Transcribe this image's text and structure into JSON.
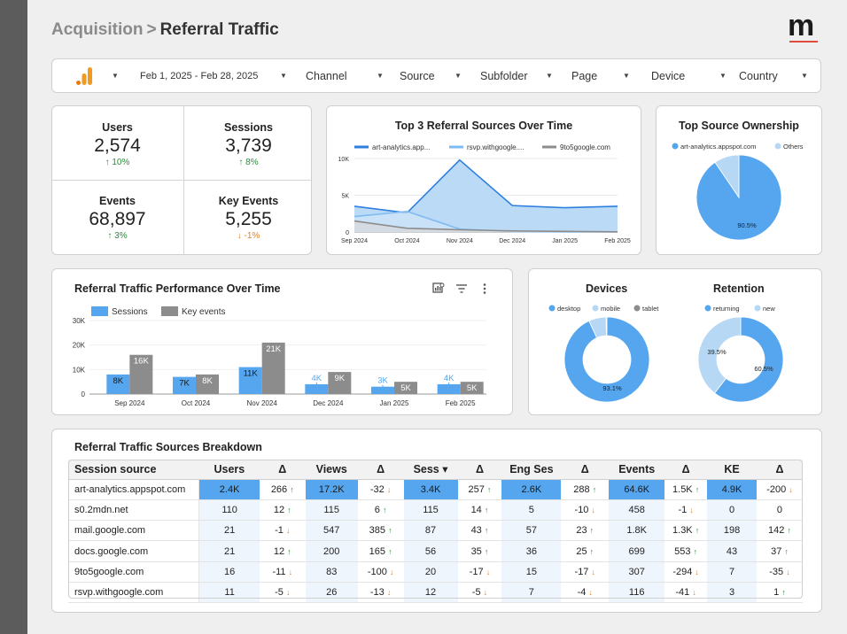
{
  "header": {
    "crumb": "Acquisition",
    "separator": ">",
    "title": "Referral Traffic",
    "logo_letter": "m"
  },
  "filters": {
    "date_range": "Feb 1, 2025 - Feb 28, 2025",
    "items": [
      "Channel",
      "Source",
      "Subfolder",
      "Page",
      "Device",
      "Country"
    ]
  },
  "kpis": [
    {
      "label": "Users",
      "value": "2,574",
      "delta": "10%",
      "dir": "up"
    },
    {
      "label": "Sessions",
      "value": "3,739",
      "delta": "8%",
      "dir": "up"
    },
    {
      "label": "Events",
      "value": "68,897",
      "delta": "3%",
      "dir": "up"
    },
    {
      "label": "Key Events",
      "value": "5,255",
      "delta": "-1%",
      "dir": "down"
    }
  ],
  "top3": {
    "title": "Top 3 Referral Sources Over Time",
    "legend": [
      "art-analytics.app...",
      "rsvp.withgoogle....",
      "9to5google.com"
    ]
  },
  "ownership": {
    "title": "Top Source Ownership",
    "legend": [
      "art-analytics.appspot.com",
      "Others"
    ],
    "label": "90.5%"
  },
  "performance": {
    "title": "Referral Traffic Performance Over Time",
    "legend": [
      "Sessions",
      "Key events"
    ]
  },
  "devices": {
    "title": "Devices",
    "legend": [
      "desktop",
      "mobile",
      "tablet"
    ],
    "label": "93.1%"
  },
  "retention": {
    "title": "Retention",
    "legend": [
      "returning",
      "new"
    ],
    "label_returning": "60.5%",
    "label_new": "39.5%"
  },
  "breakdown": {
    "title": "Referral Traffic Sources Breakdown",
    "columns": [
      "Session source",
      "Users",
      "Δ",
      "Views",
      "Δ",
      "Sess ▾",
      "Δ",
      "Eng Ses",
      "Δ",
      "Events",
      "Δ",
      "KE",
      "Δ"
    ],
    "rows": [
      [
        "art-analytics.appspot.com",
        "2.4K",
        "266 ↑",
        "17.2K",
        "-32 ↓",
        "3.4K",
        "257 ↑",
        "2.6K",
        "288 ↑",
        "64.6K",
        "1.5K ↑",
        "4.9K",
        "-200 ↓"
      ],
      [
        "s0.2mdn.net",
        "110",
        "12 ↑",
        "115",
        "6 ↑",
        "115",
        "14 ↑",
        "5",
        "-10 ↓",
        "458",
        "-1 ↓",
        "0",
        "0"
      ],
      [
        "mail.google.com",
        "21",
        "-1 ↓",
        "547",
        "385 ↑",
        "87",
        "43 ↑",
        "57",
        "23 ↑",
        "1.8K",
        "1.3K ↑",
        "198",
        "142 ↑"
      ],
      [
        "docs.google.com",
        "21",
        "12 ↑",
        "200",
        "165 ↑",
        "56",
        "35 ↑",
        "36",
        "25 ↑",
        "699",
        "553 ↑",
        "43",
        "37 ↑"
      ],
      [
        "9to5google.com",
        "16",
        "-11 ↓",
        "83",
        "-100 ↓",
        "20",
        "-17 ↓",
        "15",
        "-17 ↓",
        "307",
        "-294 ↓",
        "7",
        "-35 ↓"
      ],
      [
        "rsvp.withgoogle.com",
        "11",
        "-5 ↓",
        "26",
        "-13 ↓",
        "12",
        "-5 ↓",
        "7",
        "-4 ↓",
        "116",
        "-41 ↓",
        "3",
        "1 ↑"
      ]
    ]
  },
  "colors": {
    "blue": "#55a6ee",
    "lightblue": "#b7d8f5",
    "gray": "#8c8c8c",
    "up": "#2e8b3a",
    "down": "#e0822a",
    "accent_red": "#e24a3b",
    "ga_orange": "#f29a1d"
  },
  "chart_data": [
    {
      "type": "area",
      "title": "Top 3 Referral Sources Over Time",
      "categories": [
        "Sep 2024",
        "Oct 2024",
        "Nov 2024",
        "Dec 2024",
        "Jan 2025",
        "Feb 2025"
      ],
      "ylim": [
        0,
        10000
      ],
      "yticks": [
        "0",
        "5K",
        "10K"
      ],
      "series": [
        {
          "name": "art-analytics.app...",
          "values": [
            3500,
            2600,
            9800,
            3600,
            3300,
            3500
          ]
        },
        {
          "name": "rsvp.withgoogle....",
          "values": [
            2100,
            2800,
            400,
            50,
            20,
            10
          ]
        },
        {
          "name": "9to5google.com",
          "values": [
            1500,
            500,
            300,
            150,
            80,
            20
          ]
        }
      ]
    },
    {
      "type": "pie",
      "title": "Top Source Ownership",
      "labels": [
        "art-analytics.appspot.com",
        "Others"
      ],
      "values": [
        90.5,
        9.5
      ]
    },
    {
      "type": "bar",
      "title": "Referral Traffic Performance Over Time",
      "categories": [
        "Sep 2024",
        "Oct 2024",
        "Nov 2024",
        "Dec 2024",
        "Jan 2025",
        "Feb 2025"
      ],
      "ylim": [
        0,
        30000
      ],
      "yticks": [
        "0",
        "10K",
        "20K",
        "30K"
      ],
      "series": [
        {
          "name": "Sessions",
          "values": [
            8000,
            7000,
            11000,
            4000,
            3000,
            4000
          ],
          "labels": [
            "8K",
            "7K",
            "11K",
            "4K",
            "3K",
            "4K"
          ]
        },
        {
          "name": "Key events",
          "values": [
            16000,
            8000,
            21000,
            9000,
            5000,
            5000
          ],
          "labels": [
            "16K",
            "8K",
            "21K",
            "9K",
            "5K",
            "5K"
          ]
        }
      ]
    },
    {
      "type": "pie",
      "title": "Devices",
      "labels": [
        "desktop",
        "mobile",
        "tablet"
      ],
      "values": [
        93.1,
        6.6,
        0.3
      ]
    },
    {
      "type": "pie",
      "title": "Retention",
      "labels": [
        "returning",
        "new"
      ],
      "values": [
        60.5,
        39.5
      ]
    }
  ]
}
